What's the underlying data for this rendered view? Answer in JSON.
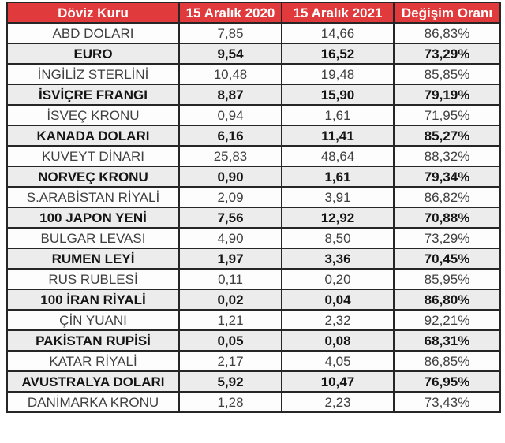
{
  "colors": {
    "header_bg": "#e13a3c",
    "header_text": "#ffffff",
    "row_default_bg": "#fdfdfd",
    "row_emphasis_bg": "#ececec",
    "border": "#262626",
    "text_default": "#404040",
    "text_emphasis": "#141414"
  },
  "chart_data": {
    "type": "table",
    "title": "",
    "columns": [
      "Döviz Kuru",
      "15 Aralık 2020",
      "15 Aralık 2021",
      "Değişim Oranı"
    ],
    "rows": [
      {
        "cells": [
          "ABD DOLARI",
          "7,85",
          "14,66",
          "86,83%"
        ],
        "bold": false
      },
      {
        "cells": [
          "EURO",
          "9,54",
          "16,52",
          "73,29%"
        ],
        "bold": true
      },
      {
        "cells": [
          "İNGİLİZ STERLİNİ",
          "10,48",
          "19,48",
          "85,85%"
        ],
        "bold": false
      },
      {
        "cells": [
          "İSVİÇRE FRANGI",
          "8,87",
          "15,90",
          "79,19%"
        ],
        "bold": true
      },
      {
        "cells": [
          "İSVEÇ KRONU",
          "0,94",
          "1,61",
          "71,95%"
        ],
        "bold": false
      },
      {
        "cells": [
          "KANADA DOLARI",
          "6,16",
          "11,41",
          "85,27%"
        ],
        "bold": true
      },
      {
        "cells": [
          "KUVEYT DİNARI",
          "25,83",
          "48,64",
          "88,32%"
        ],
        "bold": false
      },
      {
        "cells": [
          "NORVEÇ KRONU",
          "0,90",
          "1,61",
          "79,34%"
        ],
        "bold": true
      },
      {
        "cells": [
          "S.ARABİSTAN RİYALİ",
          "2,09",
          "3,91",
          "86,82%"
        ],
        "bold": false
      },
      {
        "cells": [
          "100 JAPON YENİ",
          "7,56",
          "12,92",
          "70,88%"
        ],
        "bold": true
      },
      {
        "cells": [
          "BULGAR LEVASI",
          "4,90",
          "8,50",
          "73,29%"
        ],
        "bold": false
      },
      {
        "cells": [
          "RUMEN LEYİ",
          "1,97",
          "3,36",
          "70,45%"
        ],
        "bold": true
      },
      {
        "cells": [
          "RUS RUBLESİ",
          "0,11",
          "0,20",
          "85,95%"
        ],
        "bold": false
      },
      {
        "cells": [
          "100 İRAN RİYALİ",
          "0,02",
          "0,04",
          "86,80%"
        ],
        "bold": true
      },
      {
        "cells": [
          "ÇİN YUANI",
          "1,21",
          "2,32",
          "92,21%"
        ],
        "bold": false
      },
      {
        "cells": [
          "PAKİSTAN RUPİSİ",
          "0,05",
          "0,08",
          "68,31%"
        ],
        "bold": true
      },
      {
        "cells": [
          "KATAR RİYALİ",
          "2,17",
          "4,05",
          "86,85%"
        ],
        "bold": false
      },
      {
        "cells": [
          "AVUSTRALYA DOLARI",
          "5,92",
          "10,47",
          "76,95%"
        ],
        "bold": true
      },
      {
        "cells": [
          "DANİMARKA KRONU",
          "1,28",
          "2,23",
          "73,43%"
        ],
        "bold": false
      }
    ]
  }
}
